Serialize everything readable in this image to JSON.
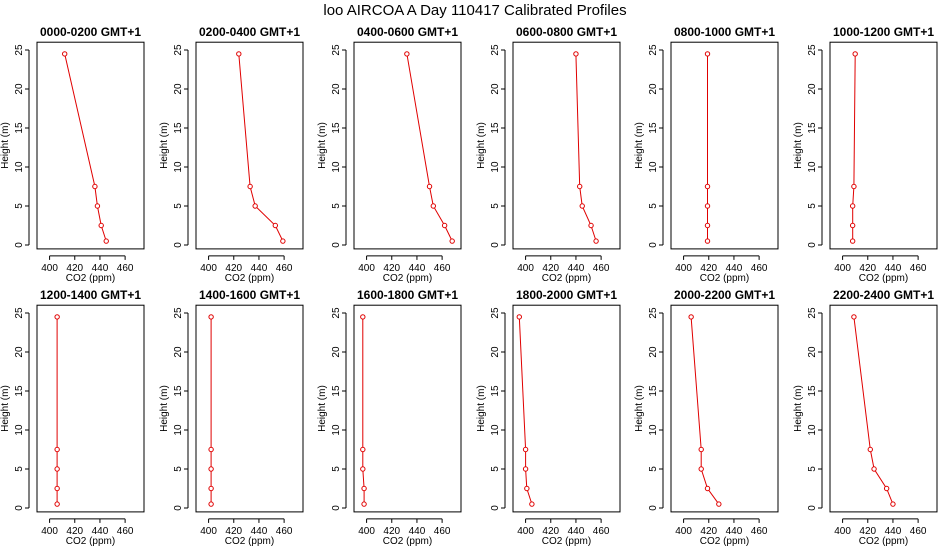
{
  "figure_title": "loo AIRCOA A  Day 110417  Calibrated Profiles",
  "colors": {
    "series": "#e00000",
    "axes": "#000000"
  },
  "chart_data": [
    {
      "type": "line",
      "title": "0000-0200 GMT+1",
      "xlabel": "CO2 (ppm)",
      "ylabel": "Height (m)",
      "xlim": [
        390,
        475
      ],
      "ylim": [
        -0.5,
        26
      ],
      "xticks": [
        400,
        420,
        440,
        460
      ],
      "yticks": [
        0,
        5,
        10,
        15,
        20,
        25
      ],
      "points": [
        {
          "x": 412,
          "y": 24.5
        },
        {
          "x": 436,
          "y": 7.5
        },
        {
          "x": 438,
          "y": 5
        },
        {
          "x": 441,
          "y": 2.5
        },
        {
          "x": 445,
          "y": 0.5
        }
      ]
    },
    {
      "type": "line",
      "title": "0200-0400 GMT+1",
      "xlabel": "CO2 (ppm)",
      "ylabel": "Height (m)",
      "xlim": [
        390,
        475
      ],
      "ylim": [
        -0.5,
        26
      ],
      "xticks": [
        400,
        420,
        440,
        460
      ],
      "yticks": [
        0,
        5,
        10,
        15,
        20,
        25
      ],
      "points": [
        {
          "x": 424,
          "y": 24.5
        },
        {
          "x": 433,
          "y": 7.5
        },
        {
          "x": 437,
          "y": 5
        },
        {
          "x": 453,
          "y": 2.5
        },
        {
          "x": 459,
          "y": 0.5
        }
      ]
    },
    {
      "type": "line",
      "title": "0400-0600 GMT+1",
      "xlabel": "CO2 (ppm)",
      "ylabel": "Height (m)",
      "xlim": [
        390,
        475
      ],
      "ylim": [
        -0.5,
        26
      ],
      "xticks": [
        400,
        420,
        440,
        460
      ],
      "yticks": [
        0,
        5,
        10,
        15,
        20,
        25
      ],
      "points": [
        {
          "x": 432,
          "y": 24.5
        },
        {
          "x": 450,
          "y": 7.5
        },
        {
          "x": 453,
          "y": 5
        },
        {
          "x": 462,
          "y": 2.5
        },
        {
          "x": 468,
          "y": 0.5
        }
      ]
    },
    {
      "type": "line",
      "title": "0600-0800 GMT+1",
      "xlabel": "CO2 (ppm)",
      "ylabel": "Height (m)",
      "xlim": [
        390,
        475
      ],
      "ylim": [
        -0.5,
        26
      ],
      "xticks": [
        400,
        420,
        440,
        460
      ],
      "yticks": [
        0,
        5,
        10,
        15,
        20,
        25
      ],
      "points": [
        {
          "x": 440,
          "y": 24.5
        },
        {
          "x": 443,
          "y": 7.5
        },
        {
          "x": 445,
          "y": 5
        },
        {
          "x": 452,
          "y": 2.5
        },
        {
          "x": 456,
          "y": 0.5
        }
      ]
    },
    {
      "type": "line",
      "title": "0800-1000 GMT+1",
      "xlabel": "CO2 (ppm)",
      "ylabel": "Height (m)",
      "xlim": [
        390,
        475
      ],
      "ylim": [
        -0.5,
        26
      ],
      "xticks": [
        400,
        420,
        440,
        460
      ],
      "yticks": [
        0,
        5,
        10,
        15,
        20,
        25
      ],
      "points": [
        {
          "x": 419,
          "y": 24.5
        },
        {
          "x": 419,
          "y": 7.5
        },
        {
          "x": 419,
          "y": 5
        },
        {
          "x": 419,
          "y": 2.5
        },
        {
          "x": 419,
          "y": 0.5
        }
      ]
    },
    {
      "type": "line",
      "title": "1000-1200 GMT+1",
      "xlabel": "CO2 (ppm)",
      "ylabel": "Height (m)",
      "xlim": [
        390,
        475
      ],
      "ylim": [
        -0.5,
        26
      ],
      "xticks": [
        400,
        420,
        440,
        460
      ],
      "yticks": [
        0,
        5,
        10,
        15,
        20,
        25
      ],
      "points": [
        {
          "x": 410,
          "y": 24.5
        },
        {
          "x": 409,
          "y": 7.5
        },
        {
          "x": 408,
          "y": 5
        },
        {
          "x": 408,
          "y": 2.5
        },
        {
          "x": 408,
          "y": 0.5
        }
      ]
    },
    {
      "type": "line",
      "title": "1200-1400 GMT+1",
      "xlabel": "CO2 (ppm)",
      "ylabel": "Height (m)",
      "xlim": [
        390,
        475
      ],
      "ylim": [
        -0.5,
        26
      ],
      "xticks": [
        400,
        420,
        440,
        460
      ],
      "yticks": [
        0,
        5,
        10,
        15,
        20,
        25
      ],
      "points": [
        {
          "x": 406,
          "y": 24.5
        },
        {
          "x": 406,
          "y": 7.5
        },
        {
          "x": 406,
          "y": 5
        },
        {
          "x": 406,
          "y": 2.5
        },
        {
          "x": 406,
          "y": 0.5
        }
      ]
    },
    {
      "type": "line",
      "title": "1400-1600 GMT+1",
      "xlabel": "CO2 (ppm)",
      "ylabel": "Height (m)",
      "xlim": [
        390,
        475
      ],
      "ylim": [
        -0.5,
        26
      ],
      "xticks": [
        400,
        420,
        440,
        460
      ],
      "yticks": [
        0,
        5,
        10,
        15,
        20,
        25
      ],
      "points": [
        {
          "x": 402,
          "y": 24.5
        },
        {
          "x": 402,
          "y": 7.5
        },
        {
          "x": 402,
          "y": 5
        },
        {
          "x": 402,
          "y": 2.5
        },
        {
          "x": 402,
          "y": 0.5
        }
      ]
    },
    {
      "type": "line",
      "title": "1600-1800 GMT+1",
      "xlabel": "CO2 (ppm)",
      "ylabel": "Height (m)",
      "xlim": [
        390,
        475
      ],
      "ylim": [
        -0.5,
        26
      ],
      "xticks": [
        400,
        420,
        440,
        460
      ],
      "yticks": [
        0,
        5,
        10,
        15,
        20,
        25
      ],
      "points": [
        {
          "x": 397,
          "y": 24.5
        },
        {
          "x": 397,
          "y": 7.5
        },
        {
          "x": 397,
          "y": 5
        },
        {
          "x": 398,
          "y": 2.5
        },
        {
          "x": 398,
          "y": 0.5
        }
      ]
    },
    {
      "type": "line",
      "title": "1800-2000 GMT+1",
      "xlabel": "CO2 (ppm)",
      "ylabel": "Height (m)",
      "xlim": [
        390,
        475
      ],
      "ylim": [
        -0.5,
        26
      ],
      "xticks": [
        400,
        420,
        440,
        460
      ],
      "yticks": [
        0,
        5,
        10,
        15,
        20,
        25
      ],
      "points": [
        {
          "x": 395,
          "y": 24.5
        },
        {
          "x": 400,
          "y": 7.5
        },
        {
          "x": 400,
          "y": 5
        },
        {
          "x": 401,
          "y": 2.5
        },
        {
          "x": 405,
          "y": 0.5
        }
      ]
    },
    {
      "type": "line",
      "title": "2000-2200 GMT+1",
      "xlabel": "CO2 (ppm)",
      "ylabel": "Height (m)",
      "xlim": [
        390,
        475
      ],
      "ylim": [
        -0.5,
        26
      ],
      "xticks": [
        400,
        420,
        440,
        460
      ],
      "yticks": [
        0,
        5,
        10,
        15,
        20,
        25
      ],
      "points": [
        {
          "x": 406,
          "y": 24.5
        },
        {
          "x": 414,
          "y": 7.5
        },
        {
          "x": 414,
          "y": 5
        },
        {
          "x": 419,
          "y": 2.5
        },
        {
          "x": 428,
          "y": 0.5
        }
      ]
    },
    {
      "type": "line",
      "title": "2200-2400 GMT+1",
      "xlabel": "CO2 (ppm)",
      "ylabel": "Height (m)",
      "xlim": [
        390,
        475
      ],
      "ylim": [
        -0.5,
        26
      ],
      "xticks": [
        400,
        420,
        440,
        460
      ],
      "yticks": [
        0,
        5,
        10,
        15,
        20,
        25
      ],
      "points": [
        {
          "x": 409,
          "y": 24.5
        },
        {
          "x": 422,
          "y": 7.5
        },
        {
          "x": 425,
          "y": 5
        },
        {
          "x": 435,
          "y": 2.5
        },
        {
          "x": 440,
          "y": 0.5
        }
      ]
    }
  ]
}
